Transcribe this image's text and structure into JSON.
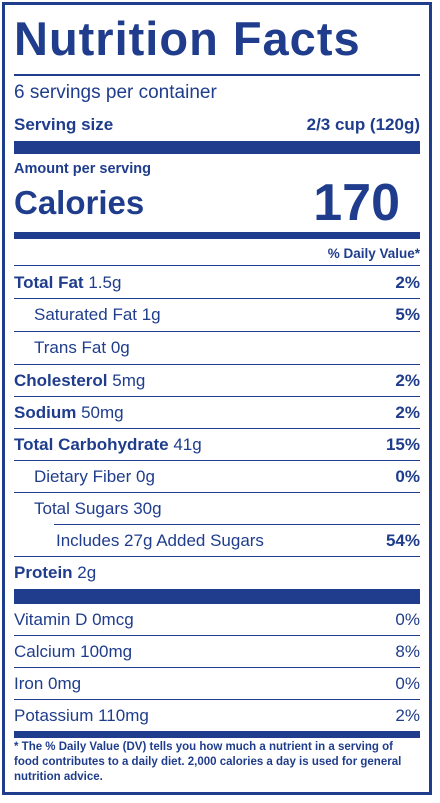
{
  "title": "Nutrition Facts",
  "servings_per_container": "6 servings per container",
  "serving_size_label": "Serving size",
  "serving_size_value": "2/3 cup (120g)",
  "amount_per_serving": "Amount per serving",
  "calories_label": "Calories",
  "calories_value": "170",
  "dv_header": "% Daily Value*",
  "nutrients": [
    {
      "name": "Total Fat",
      "amount": "1.5g",
      "dv": "2%"
    },
    {
      "name": "Saturated Fat 1g",
      "dv": "5%"
    },
    {
      "name": "Trans Fat 0g",
      "dv": ""
    },
    {
      "name": "Cholesterol",
      "amount": "5mg",
      "dv": "2%"
    },
    {
      "name": "Sodium",
      "amount": "50mg",
      "dv": "2%"
    },
    {
      "name": "Total Carbohydrate",
      "amount": "41g",
      "dv": "15%"
    },
    {
      "name": "Dietary Fiber 0g",
      "dv": "0%"
    },
    {
      "name": "Total Sugars 30g",
      "dv": ""
    },
    {
      "name": "Includes 27g Added Sugars",
      "dv": "54%"
    },
    {
      "name": "Protein",
      "amount": "2g",
      "dv": ""
    }
  ],
  "vitamins": [
    {
      "name": "Vitamin D 0mcg",
      "dv": "0%"
    },
    {
      "name": "Calcium 100mg",
      "dv": "8%"
    },
    {
      "name": "Iron 0mg",
      "dv": "0%"
    },
    {
      "name": "Potassium 110mg",
      "dv": "2%"
    }
  ],
  "footnote": "* The % Daily Value (DV) tells you how much a nutrient in a serving of food contributes to a daily diet. 2,000 calories a day is used for general nutrition advice.",
  "colors": {
    "ink": "#1f3d8c",
    "background": "#ffffff"
  }
}
